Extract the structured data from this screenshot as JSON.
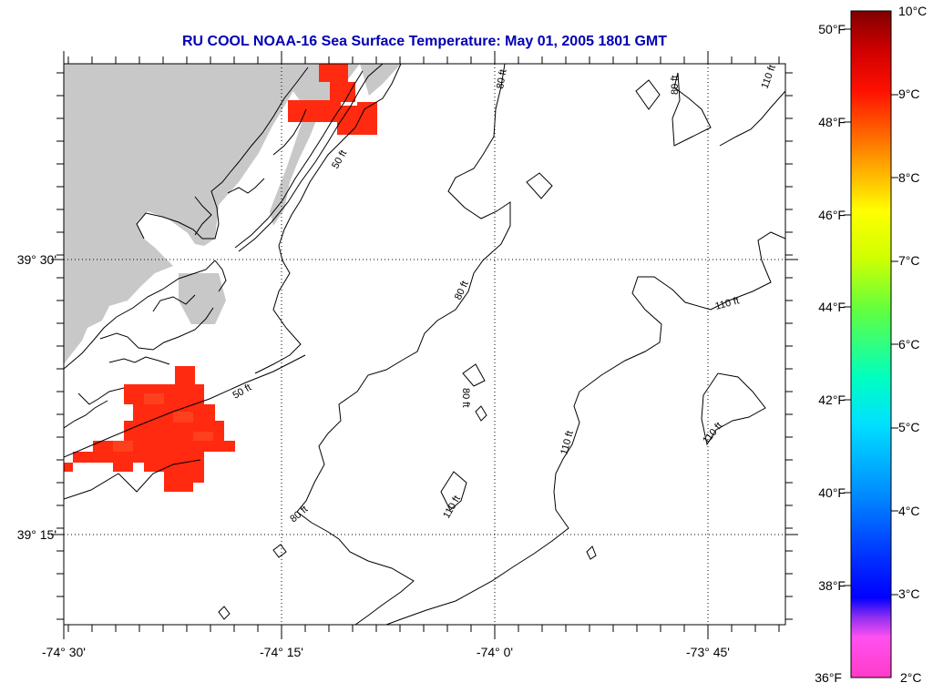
{
  "title": "RU COOL  NOAA-16  Sea Surface Temperature:  May 01, 2005 1801 GMT",
  "map": {
    "lon_labels": [
      "-74° 30'",
      "-74° 15'",
      "-74° 0'",
      "-73° 45'"
    ],
    "lat_labels": [
      "39° 30'",
      "39° 15'"
    ],
    "contours": {
      "c50": [
        "50 ft",
        "50 ft"
      ],
      "c80": [
        "80 ft",
        "80 ft",
        "80 ft",
        "80 ft",
        "80 ft"
      ],
      "c110": [
        "110 ft",
        "110 ft",
        "110 ft",
        "110 ft",
        "110 ft"
      ]
    },
    "colors": {
      "land": "#c8c8c8",
      "sst_red": "#ff2a10",
      "sst_orange_red": "#ff4418",
      "coast_line": "#000000",
      "graticule": "#000000"
    }
  },
  "colorbar": {
    "f_labels": [
      "50°F",
      "48°F",
      "46°F",
      "44°F",
      "42°F",
      "40°F",
      "38°F",
      "36°F"
    ],
    "c_labels": [
      "10°C",
      "9°C",
      "8°C",
      "7°C",
      "6°C",
      "5°C",
      "4°C",
      "3°C",
      "2°C"
    ],
    "stops": [
      "#ff40c0",
      "#ff60ff",
      "#8020ff",
      "#0000ff",
      "#0060ff",
      "#00c8ff",
      "#00ffd0",
      "#40ff60",
      "#c0ff00",
      "#ffff00",
      "#ffa000",
      "#ff4000",
      "#ff0000",
      "#c00000",
      "#800000"
    ]
  }
}
